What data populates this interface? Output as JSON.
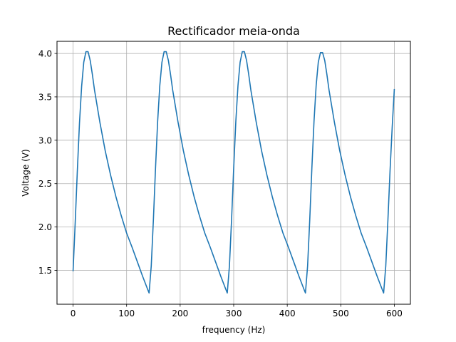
{
  "chart_data": {
    "type": "line",
    "title": "Rectificador meia-onda",
    "xlabel": "frequency (Hz)",
    "ylabel": "Voltage (V)",
    "xlim": [
      -30,
      630
    ],
    "ylim": [
      1.11,
      4.14
    ],
    "x_ticks": [
      0,
      100,
      200,
      300,
      400,
      500,
      600
    ],
    "x_tick_labels": [
      "0",
      "100",
      "200",
      "300",
      "400",
      "500",
      "600"
    ],
    "y_ticks": [
      1.5,
      2.0,
      2.5,
      3.0,
      3.5,
      4.0
    ],
    "y_tick_labels": [
      "1.5",
      "2.0",
      "2.5",
      "3.0",
      "3.5",
      "4.0"
    ],
    "grid": true,
    "series": [
      {
        "color": "#1f77b4",
        "x": [
          0,
          4,
          8,
          12,
          16,
          20,
          24,
          28,
          32,
          36,
          40,
          50,
          60,
          70,
          80,
          90,
          100,
          110,
          120,
          130,
          140,
          142,
          146,
          150,
          154,
          158,
          162,
          166,
          170,
          174,
          178,
          182,
          186,
          196,
          206,
          216,
          226,
          236,
          246,
          256,
          266,
          276,
          286,
          288,
          292,
          296,
          300,
          304,
          308,
          312,
          316,
          320,
          324,
          328,
          332,
          342,
          352,
          362,
          372,
          382,
          392,
          402,
          412,
          422,
          432,
          434,
          438,
          442,
          446,
          450,
          454,
          458,
          462,
          466,
          470,
          474,
          478,
          488,
          498,
          508,
          518,
          528,
          538,
          548,
          558,
          568,
          578,
          580,
          584,
          588,
          592,
          596,
          600
        ],
        "y": [
          1.49,
          2.05,
          2.65,
          3.2,
          3.62,
          3.9,
          4.02,
          4.02,
          3.92,
          3.76,
          3.58,
          3.21,
          2.88,
          2.6,
          2.35,
          2.13,
          1.93,
          1.77,
          1.6,
          1.43,
          1.27,
          1.24,
          1.55,
          2.08,
          2.68,
          3.22,
          3.63,
          3.9,
          4.02,
          4.02,
          3.92,
          3.76,
          3.58,
          3.21,
          2.88,
          2.6,
          2.35,
          2.13,
          1.93,
          1.77,
          1.6,
          1.43,
          1.27,
          1.24,
          1.55,
          2.08,
          2.68,
          3.22,
          3.63,
          3.9,
          4.02,
          4.02,
          3.92,
          3.76,
          3.58,
          3.21,
          2.88,
          2.6,
          2.35,
          2.13,
          1.93,
          1.77,
          1.6,
          1.43,
          1.27,
          1.24,
          1.55,
          2.08,
          2.68,
          3.22,
          3.63,
          3.9,
          4.01,
          4.01,
          3.92,
          3.76,
          3.58,
          3.21,
          2.88,
          2.6,
          2.35,
          2.13,
          1.93,
          1.77,
          1.6,
          1.43,
          1.27,
          1.24,
          1.55,
          2.08,
          2.65,
          3.15,
          3.59
        ]
      }
    ]
  }
}
